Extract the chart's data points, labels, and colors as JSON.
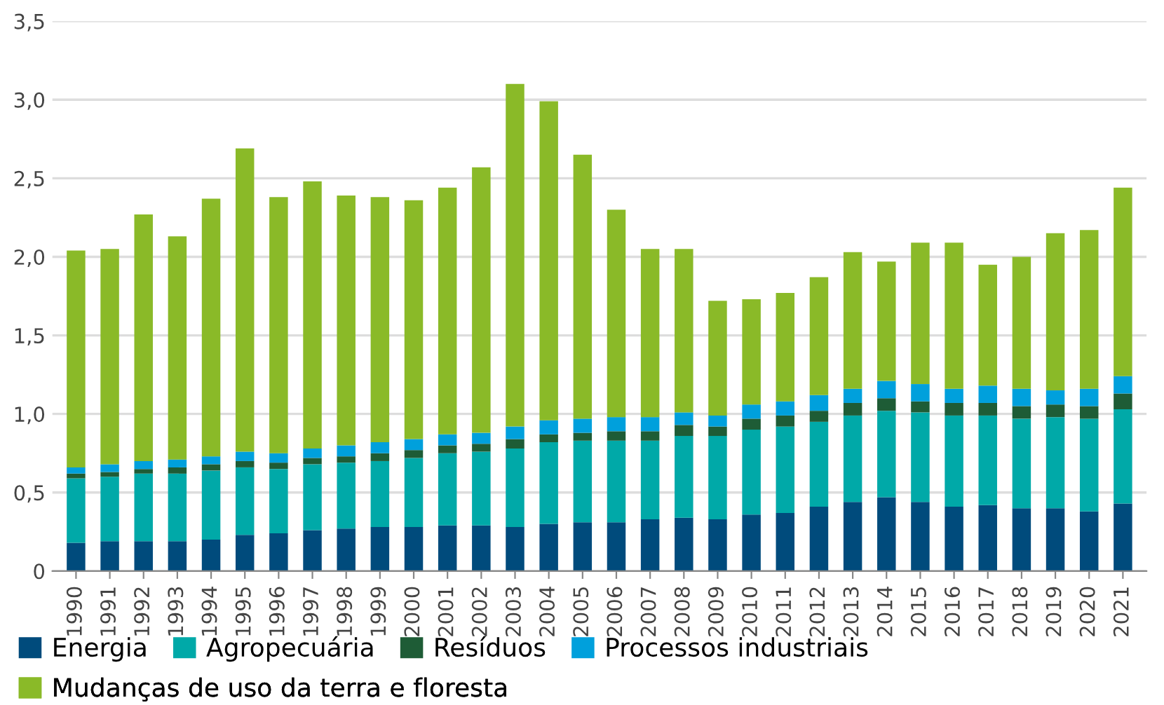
{
  "chart_data": {
    "type": "bar",
    "stacked": true,
    "categories": [
      "1990",
      "1991",
      "1992",
      "1993",
      "1994",
      "1995",
      "1996",
      "1997",
      "1998",
      "1999",
      "2000",
      "2001",
      "2002",
      "2003",
      "2004",
      "2005",
      "2006",
      "2007",
      "2008",
      "2009",
      "2010",
      "2011",
      "2012",
      "2013",
      "2014",
      "2015",
      "2016",
      "2017",
      "2018",
      "2019",
      "2020",
      "2021"
    ],
    "series": [
      {
        "name": "Energia",
        "color": "#004b7c",
        "values": [
          0.18,
          0.19,
          0.19,
          0.19,
          0.2,
          0.23,
          0.24,
          0.26,
          0.27,
          0.28,
          0.28,
          0.29,
          0.29,
          0.28,
          0.3,
          0.31,
          0.31,
          0.33,
          0.34,
          0.33,
          0.36,
          0.37,
          0.41,
          0.44,
          0.47,
          0.44,
          0.41,
          0.42,
          0.4,
          0.4,
          0.38,
          0.43
        ]
      },
      {
        "name": "Agropecuária",
        "color": "#00a9a8",
        "values": [
          0.41,
          0.41,
          0.43,
          0.43,
          0.44,
          0.43,
          0.41,
          0.42,
          0.42,
          0.42,
          0.44,
          0.46,
          0.47,
          0.5,
          0.52,
          0.52,
          0.52,
          0.5,
          0.52,
          0.53,
          0.54,
          0.55,
          0.54,
          0.55,
          0.55,
          0.57,
          0.58,
          0.57,
          0.57,
          0.58,
          0.59,
          0.6
        ]
      },
      {
        "name": "Resíduos",
        "color": "#1e5c36",
        "values": [
          0.03,
          0.03,
          0.03,
          0.04,
          0.04,
          0.04,
          0.04,
          0.04,
          0.04,
          0.05,
          0.05,
          0.05,
          0.05,
          0.06,
          0.05,
          0.05,
          0.06,
          0.06,
          0.07,
          0.06,
          0.07,
          0.07,
          0.07,
          0.08,
          0.08,
          0.07,
          0.08,
          0.08,
          0.08,
          0.08,
          0.08,
          0.1
        ]
      },
      {
        "name": "Processos industriais",
        "color": "#00a0dc",
        "values": [
          0.04,
          0.05,
          0.05,
          0.05,
          0.05,
          0.06,
          0.06,
          0.06,
          0.07,
          0.07,
          0.07,
          0.07,
          0.07,
          0.08,
          0.09,
          0.09,
          0.09,
          0.09,
          0.08,
          0.07,
          0.09,
          0.09,
          0.1,
          0.09,
          0.11,
          0.11,
          0.09,
          0.11,
          0.11,
          0.09,
          0.11,
          0.11
        ]
      },
      {
        "name": "Mudanças de uso da terra e floresta",
        "color": "#8aba28",
        "values": [
          1.38,
          1.37,
          1.57,
          1.42,
          1.64,
          1.93,
          1.63,
          1.7,
          1.59,
          1.56,
          1.52,
          1.57,
          1.69,
          2.18,
          2.03,
          1.68,
          1.32,
          1.07,
          1.04,
          0.73,
          0.67,
          0.69,
          0.75,
          0.87,
          0.76,
          0.9,
          0.93,
          0.77,
          0.84,
          1.0,
          1.01,
          1.2
        ]
      }
    ],
    "ylim": [
      0,
      3.5
    ],
    "yticks": [
      0,
      {
        "value": 0.5,
        "label": "0,5"
      },
      {
        "value": 1.0,
        "label": "1,0"
      },
      {
        "value": 1.5,
        "label": "1,5"
      },
      {
        "value": 2.0,
        "label": "2,0"
      },
      {
        "value": 2.5,
        "label": "2,5"
      },
      {
        "value": 3.0,
        "label": "3,0"
      },
      {
        "value": 3.5,
        "label": "3,5"
      }
    ],
    "grid": "y",
    "legend": "bottom"
  }
}
